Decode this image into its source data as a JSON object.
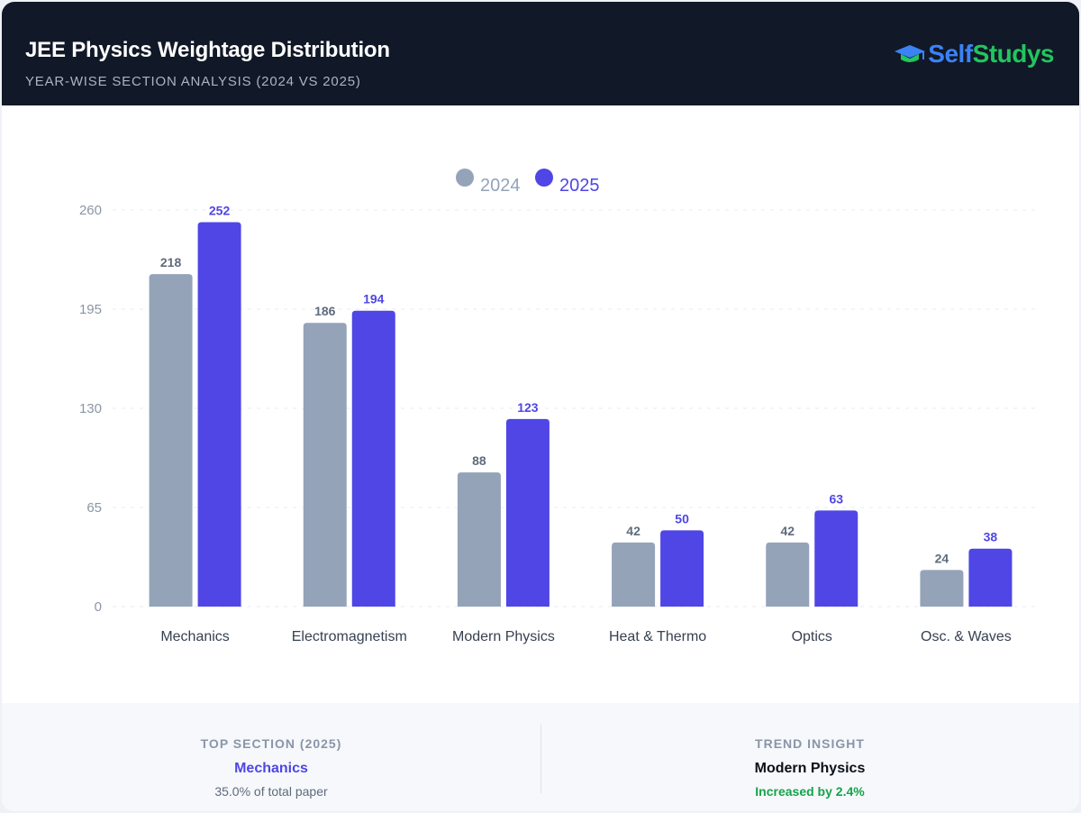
{
  "header": {
    "title": "JEE Physics Weightage Distribution",
    "subtitle": "YEAR-WISE SECTION ANALYSIS (2024 VS 2025)",
    "brand_part1": "Self",
    "brand_part2": "Studys",
    "brand_icon": "graduation-cap-icon"
  },
  "chart_data": {
    "type": "bar",
    "categories": [
      "Mechanics",
      "Electromagnetism",
      "Modern Physics",
      "Heat & Thermo",
      "Optics",
      "Osc. & Waves"
    ],
    "series": [
      {
        "name": "2024",
        "values": [
          218,
          186,
          88,
          42,
          42,
          24
        ],
        "color": "#94a3b8"
      },
      {
        "name": "2025",
        "values": [
          252,
          194,
          123,
          50,
          63,
          38
        ],
        "color": "#4f46e5"
      }
    ],
    "yticks": [
      0,
      65,
      130,
      195,
      260
    ],
    "ylim": [
      0,
      260
    ],
    "grid": true,
    "legend": "top-center",
    "data_labels": true
  },
  "footer": {
    "top_section": {
      "label": "TOP SECTION (2025)",
      "value": "Mechanics",
      "sub": "35.0% of total paper"
    },
    "trend": {
      "label": "TREND INSIGHT",
      "value": "Modern Physics",
      "sub": "Increased by 2.4%"
    }
  },
  "colors": {
    "header_bg": "#111827",
    "accent": "#4f46e5",
    "muted_bar": "#94a3b8",
    "positive": "#16a34a"
  }
}
